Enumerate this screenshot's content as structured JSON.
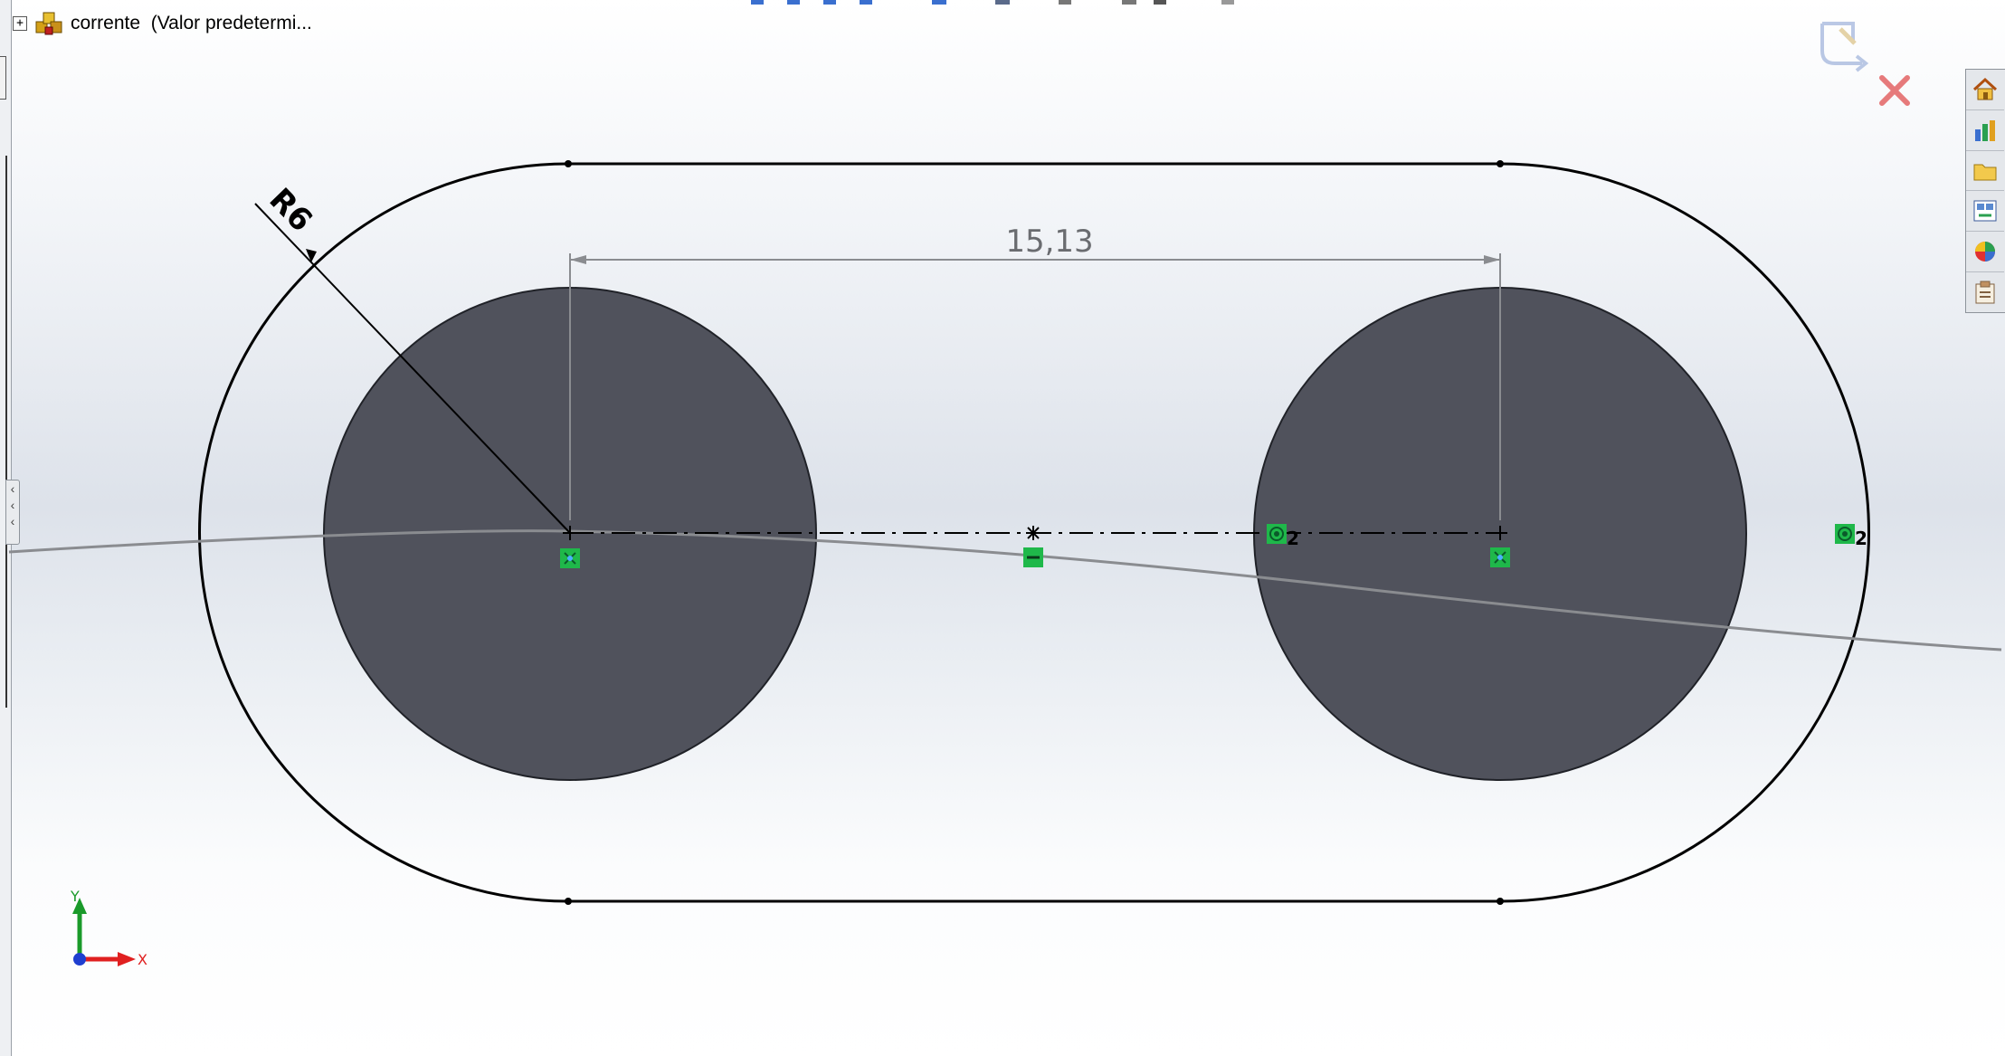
{
  "document": {
    "title": "corrente  (Valor predetermi...",
    "expand_symbol": "+"
  },
  "sketch": {
    "dimension_length": "15,13",
    "dimension_radius": "R6",
    "relation_count_left": "2",
    "relation_count_right": "2"
  },
  "triad": {
    "x_label": "X",
    "y_label": "Y"
  },
  "icons": {
    "right_toolbar": [
      "home-icon",
      "chart-icon",
      "folder-icon",
      "view-palette-icon",
      "appearance-icon",
      "custom-properties-icon"
    ],
    "confirm_corner": [
      "exit-sketch-icon",
      "cancel-icon"
    ]
  },
  "colors": {
    "hole_fill": "#50525c",
    "relation_green": "#1fb84a",
    "outline": "#000000",
    "axis_x": "#e02020",
    "axis_y": "#1a9a2a",
    "axis_z": "#1f3fd0"
  }
}
